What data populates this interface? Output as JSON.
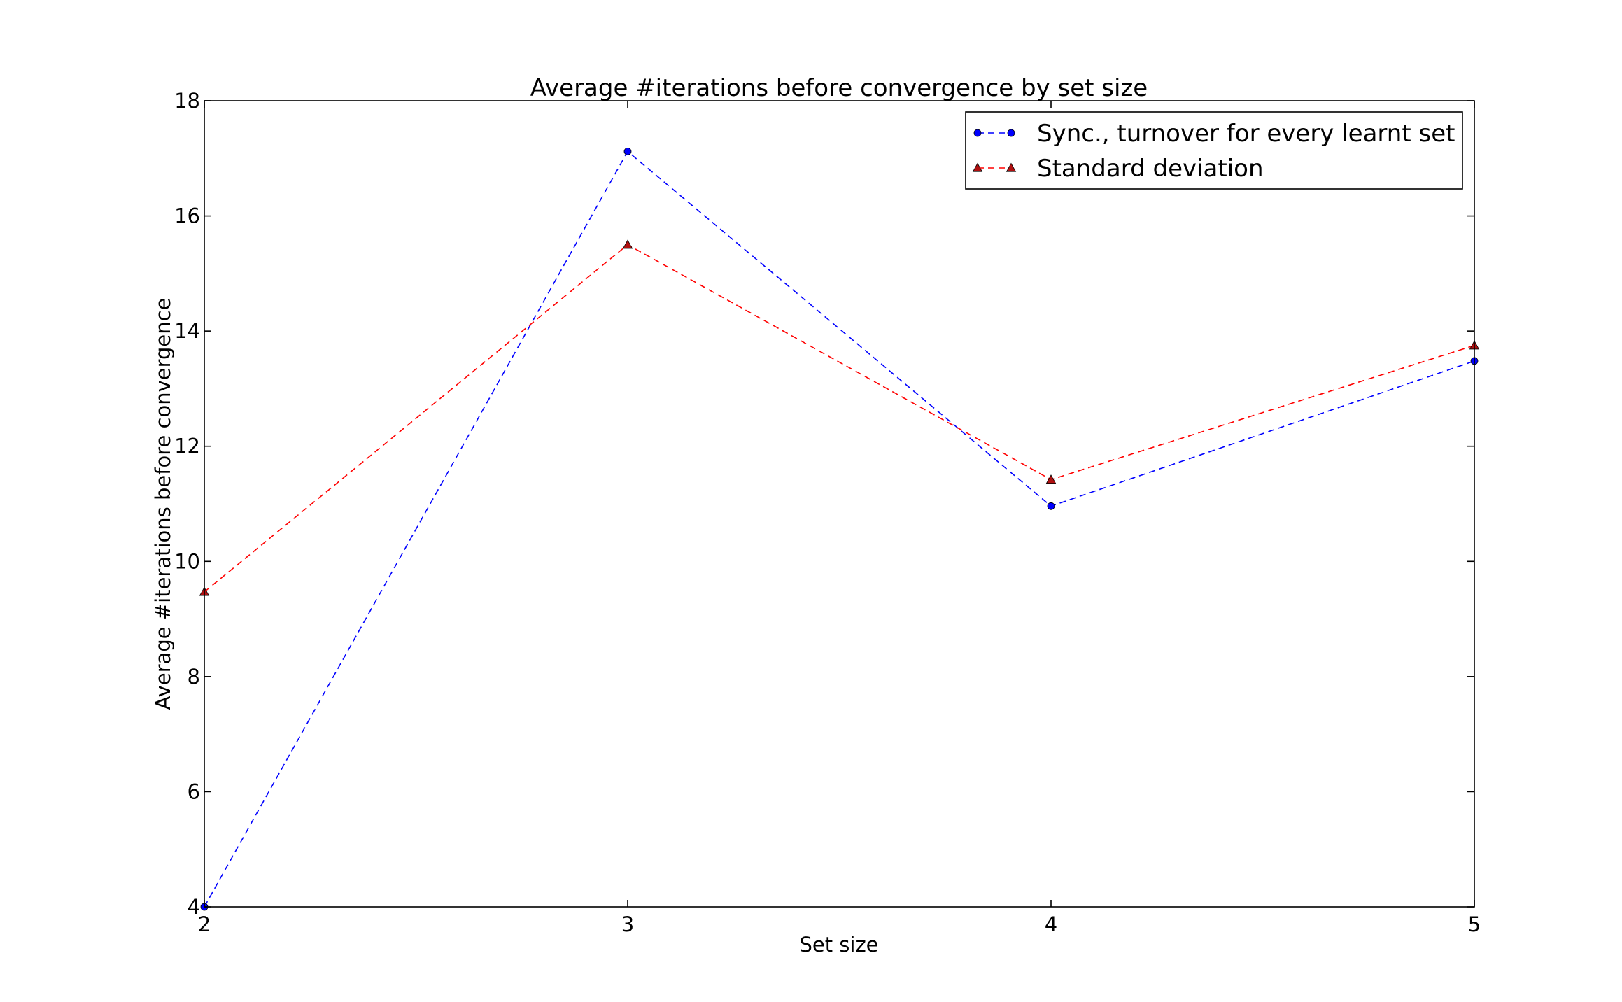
{
  "chart_data": {
    "type": "line",
    "title": "Average #iterations before convergence by set size",
    "xlabel": "Set size",
    "ylabel": "Average #iterations before convergence",
    "x": [
      2,
      3,
      4,
      5
    ],
    "xlim": [
      2,
      5
    ],
    "ylim": [
      4,
      18
    ],
    "xticks": [
      "2",
      "3",
      "4",
      "5"
    ],
    "yticks": [
      "4",
      "6",
      "8",
      "10",
      "12",
      "14",
      "16",
      "18"
    ],
    "grid": false,
    "legend_position": "top-right",
    "series": [
      {
        "name": "Sync., turnover for every learnt set",
        "values": [
          4.0,
          17.12,
          10.96,
          13.48
        ],
        "color": "#0000ff",
        "marker": "circle",
        "line_style": "dashed"
      },
      {
        "name": "Standard deviation",
        "values": [
          9.47,
          15.5,
          11.42,
          13.75
        ],
        "color": "#ff0000",
        "marker_color": "#b01010",
        "marker": "triangle",
        "line_style": "dashed"
      }
    ]
  }
}
